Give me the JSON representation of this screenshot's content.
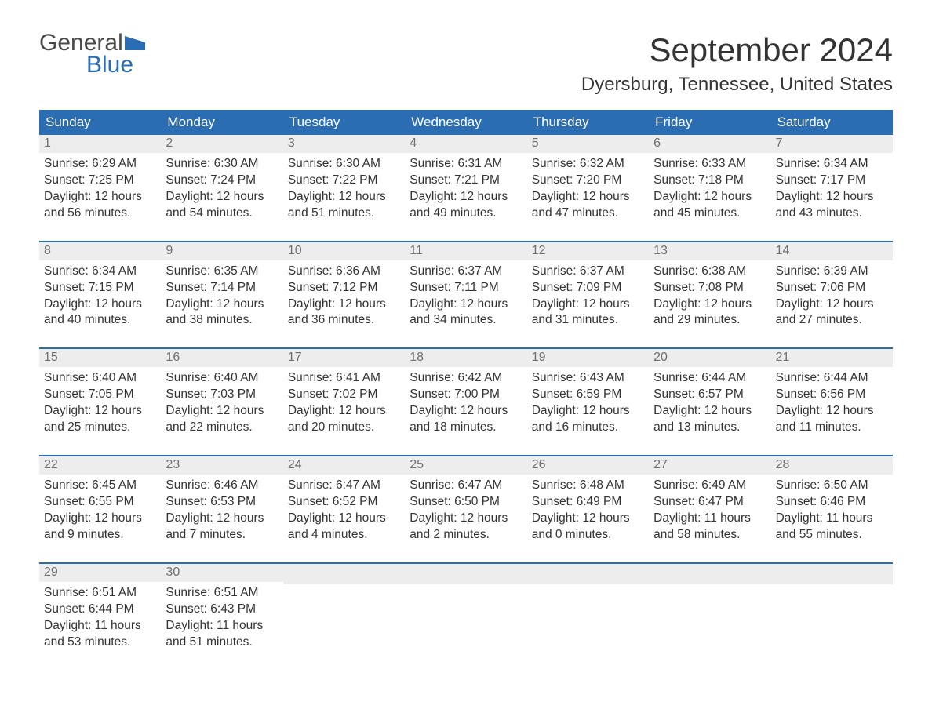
{
  "brand": {
    "top": "General",
    "bottom": "Blue",
    "flag_color": "#2a6db2"
  },
  "title": "September 2024",
  "location": "Dyersburg, Tennessee, United States",
  "colors": {
    "header_bg": "#2a6db2",
    "header_text": "#ffffff",
    "daynum_bg": "#ededed",
    "daynum_text": "#707070",
    "body_text": "#333333",
    "page_bg": "#ffffff"
  },
  "weekdays": [
    "Sunday",
    "Monday",
    "Tuesday",
    "Wednesday",
    "Thursday",
    "Friday",
    "Saturday"
  ],
  "weeks": [
    [
      {
        "n": "1",
        "sunrise": "6:29 AM",
        "sunset": "7:25 PM",
        "day_h": "12",
        "day_m": "56"
      },
      {
        "n": "2",
        "sunrise": "6:30 AM",
        "sunset": "7:24 PM",
        "day_h": "12",
        "day_m": "54"
      },
      {
        "n": "3",
        "sunrise": "6:30 AM",
        "sunset": "7:22 PM",
        "day_h": "12",
        "day_m": "51"
      },
      {
        "n": "4",
        "sunrise": "6:31 AM",
        "sunset": "7:21 PM",
        "day_h": "12",
        "day_m": "49"
      },
      {
        "n": "5",
        "sunrise": "6:32 AM",
        "sunset": "7:20 PM",
        "day_h": "12",
        "day_m": "47"
      },
      {
        "n": "6",
        "sunrise": "6:33 AM",
        "sunset": "7:18 PM",
        "day_h": "12",
        "day_m": "45"
      },
      {
        "n": "7",
        "sunrise": "6:34 AM",
        "sunset": "7:17 PM",
        "day_h": "12",
        "day_m": "43"
      }
    ],
    [
      {
        "n": "8",
        "sunrise": "6:34 AM",
        "sunset": "7:15 PM",
        "day_h": "12",
        "day_m": "40"
      },
      {
        "n": "9",
        "sunrise": "6:35 AM",
        "sunset": "7:14 PM",
        "day_h": "12",
        "day_m": "38"
      },
      {
        "n": "10",
        "sunrise": "6:36 AM",
        "sunset": "7:12 PM",
        "day_h": "12",
        "day_m": "36"
      },
      {
        "n": "11",
        "sunrise": "6:37 AM",
        "sunset": "7:11 PM",
        "day_h": "12",
        "day_m": "34"
      },
      {
        "n": "12",
        "sunrise": "6:37 AM",
        "sunset": "7:09 PM",
        "day_h": "12",
        "day_m": "31"
      },
      {
        "n": "13",
        "sunrise": "6:38 AM",
        "sunset": "7:08 PM",
        "day_h": "12",
        "day_m": "29"
      },
      {
        "n": "14",
        "sunrise": "6:39 AM",
        "sunset": "7:06 PM",
        "day_h": "12",
        "day_m": "27"
      }
    ],
    [
      {
        "n": "15",
        "sunrise": "6:40 AM",
        "sunset": "7:05 PM",
        "day_h": "12",
        "day_m": "25"
      },
      {
        "n": "16",
        "sunrise": "6:40 AM",
        "sunset": "7:03 PM",
        "day_h": "12",
        "day_m": "22"
      },
      {
        "n": "17",
        "sunrise": "6:41 AM",
        "sunset": "7:02 PM",
        "day_h": "12",
        "day_m": "20"
      },
      {
        "n": "18",
        "sunrise": "6:42 AM",
        "sunset": "7:00 PM",
        "day_h": "12",
        "day_m": "18"
      },
      {
        "n": "19",
        "sunrise": "6:43 AM",
        "sunset": "6:59 PM",
        "day_h": "12",
        "day_m": "16"
      },
      {
        "n": "20",
        "sunrise": "6:44 AM",
        "sunset": "6:57 PM",
        "day_h": "12",
        "day_m": "13"
      },
      {
        "n": "21",
        "sunrise": "6:44 AM",
        "sunset": "6:56 PM",
        "day_h": "12",
        "day_m": "11"
      }
    ],
    [
      {
        "n": "22",
        "sunrise": "6:45 AM",
        "sunset": "6:55 PM",
        "day_h": "12",
        "day_m": "9"
      },
      {
        "n": "23",
        "sunrise": "6:46 AM",
        "sunset": "6:53 PM",
        "day_h": "12",
        "day_m": "7"
      },
      {
        "n": "24",
        "sunrise": "6:47 AM",
        "sunset": "6:52 PM",
        "day_h": "12",
        "day_m": "4"
      },
      {
        "n": "25",
        "sunrise": "6:47 AM",
        "sunset": "6:50 PM",
        "day_h": "12",
        "day_m": "2"
      },
      {
        "n": "26",
        "sunrise": "6:48 AM",
        "sunset": "6:49 PM",
        "day_h": "12",
        "day_m": "0"
      },
      {
        "n": "27",
        "sunrise": "6:49 AM",
        "sunset": "6:47 PM",
        "day_h": "11",
        "day_m": "58"
      },
      {
        "n": "28",
        "sunrise": "6:50 AM",
        "sunset": "6:46 PM",
        "day_h": "11",
        "day_m": "55"
      }
    ],
    [
      {
        "n": "29",
        "sunrise": "6:51 AM",
        "sunset": "6:44 PM",
        "day_h": "11",
        "day_m": "53"
      },
      {
        "n": "30",
        "sunrise": "6:51 AM",
        "sunset": "6:43 PM",
        "day_h": "11",
        "day_m": "51"
      },
      null,
      null,
      null,
      null,
      null
    ]
  ],
  "labels": {
    "sunrise": "Sunrise:",
    "sunset": "Sunset:",
    "daylight_prefix": "Daylight:",
    "hours_word": "hours",
    "and_word": "and",
    "minutes_word": "minutes."
  }
}
